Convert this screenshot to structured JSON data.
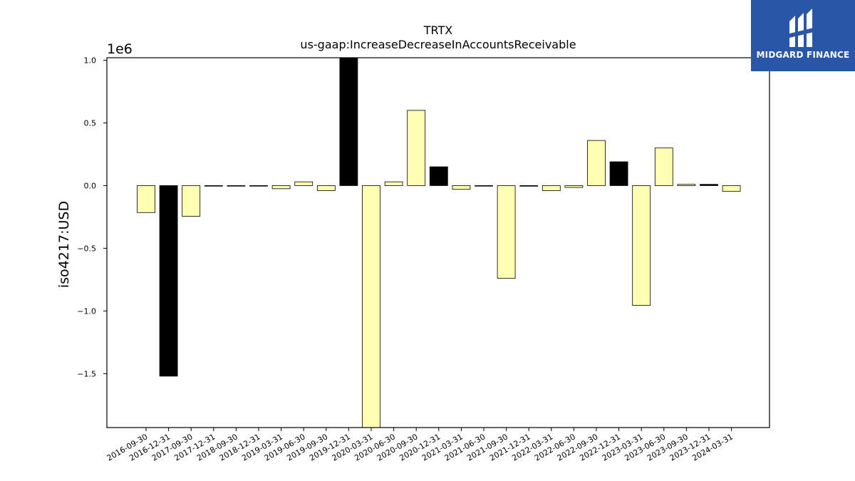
{
  "chart_data": {
    "type": "bar",
    "title": "TRTX",
    "subtitle": "us-gaap:IncreaseDecreaseInAccountsReceivable",
    "ylabel": "iso4217:USD",
    "xlabel": "",
    "y_offset_label": "1e6",
    "ylim": [
      -1.93,
      1.02
    ],
    "yticks": [
      -1.5,
      -1.0,
      -0.5,
      0.0,
      0.5,
      1.0
    ],
    "ytick_labels": [
      "−1.5",
      "−1.0",
      "−0.5",
      "0.0",
      "0.5",
      "1.0"
    ],
    "grid": false,
    "legend": "none",
    "categories": [
      "2016-09-30",
      "2016-12-31",
      "2017-09-30",
      "2017-12-31",
      "2018-09-30",
      "2018-12-31",
      "2019-03-31",
      "2019-06-30",
      "2019-09-30",
      "2019-12-31",
      "2020-03-31",
      "2020-06-30",
      "2020-09-30",
      "2020-12-31",
      "2021-03-31",
      "2021-06-30",
      "2021-09-30",
      "2021-12-31",
      "2022-03-31",
      "2022-06-30",
      "2022-09-30",
      "2022-12-31",
      "2023-03-31",
      "2023-06-30",
      "2023-09-30",
      "2023-12-31",
      "2024-03-31"
    ],
    "values": [
      -0.215,
      -1.52,
      -0.245,
      0.0,
      0.0,
      0.0,
      -0.025,
      0.03,
      -0.04,
      1.02,
      -1.93,
      0.03,
      0.6,
      0.15,
      -0.03,
      0.0,
      -0.74,
      -0.005,
      -0.04,
      -0.015,
      0.36,
      0.19,
      -0.955,
      0.3,
      0.01,
      0.01,
      -0.045
    ],
    "bar_colors": [
      "#ffffb3",
      "#000000",
      "#ffffb3",
      "#ffffb3",
      "#ffffb3",
      "#ffffb3",
      "#ffffb3",
      "#ffffb3",
      "#ffffb3",
      "#000000",
      "#ffffb3",
      "#ffffb3",
      "#ffffb3",
      "#000000",
      "#ffffb3",
      "#ffffb3",
      "#ffffb3",
      "#000000",
      "#ffffb3",
      "#ffffb3",
      "#ffffb3",
      "#000000",
      "#ffffb3",
      "#ffffb3",
      "#ffffb3",
      "#000000",
      "#ffffb3"
    ]
  },
  "logo": {
    "text": "MIDGARD FINANCE",
    "color": "#2a56a8"
  }
}
